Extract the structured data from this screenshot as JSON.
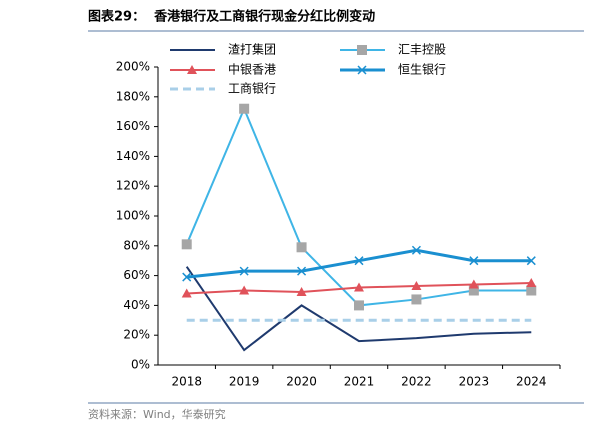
{
  "chart_data": {
    "type": "line",
    "title": "图表29：  香港银行及工商银行现金分红比例变动",
    "source": "资料来源：Wind，华泰研究",
    "categories": [
      "2018",
      "2019",
      "2020",
      "2021",
      "2022",
      "2023",
      "2024"
    ],
    "series": [
      {
        "name": "渣打集团",
        "color": "#1f3a6e",
        "values": [
          66,
          10,
          40,
          16,
          18,
          21,
          22
        ]
      },
      {
        "name": "汇丰控股",
        "color": "#3fb5e6",
        "marker": "square",
        "marker_color": "#a6a6a6",
        "values": [
          81,
          172,
          79,
          40,
          44,
          50,
          50
        ]
      },
      {
        "name": "中银香港",
        "color": "#e0525a",
        "marker": "triangle",
        "values": [
          48,
          50,
          49,
          52,
          53,
          54,
          55
        ]
      },
      {
        "name": "恒生银行",
        "color": "#1a8fd0",
        "marker": "x",
        "values": [
          59,
          63,
          63,
          70,
          77,
          70,
          70
        ]
      },
      {
        "name": "工商银行",
        "color": "#a9cfe8",
        "dashed": true,
        "values": [
          30,
          30,
          30,
          30,
          30,
          30,
          30
        ]
      }
    ],
    "ylim": [
      0,
      200
    ],
    "yticks": [
      {
        "value": 0,
        "label": "0%"
      },
      {
        "value": 20,
        "label": "20%"
      },
      {
        "value": 40,
        "label": "40%"
      },
      {
        "value": 60,
        "label": "60%"
      },
      {
        "value": 80,
        "label": "80%"
      },
      {
        "value": 100,
        "label": "100%"
      },
      {
        "value": 120,
        "label": "120%"
      },
      {
        "value": 140,
        "label": "140%"
      },
      {
        "value": 160,
        "label": "160%"
      },
      {
        "value": 180,
        "label": "180%"
      },
      {
        "value": 200,
        "label": "200%"
      }
    ],
    "grid": false
  }
}
